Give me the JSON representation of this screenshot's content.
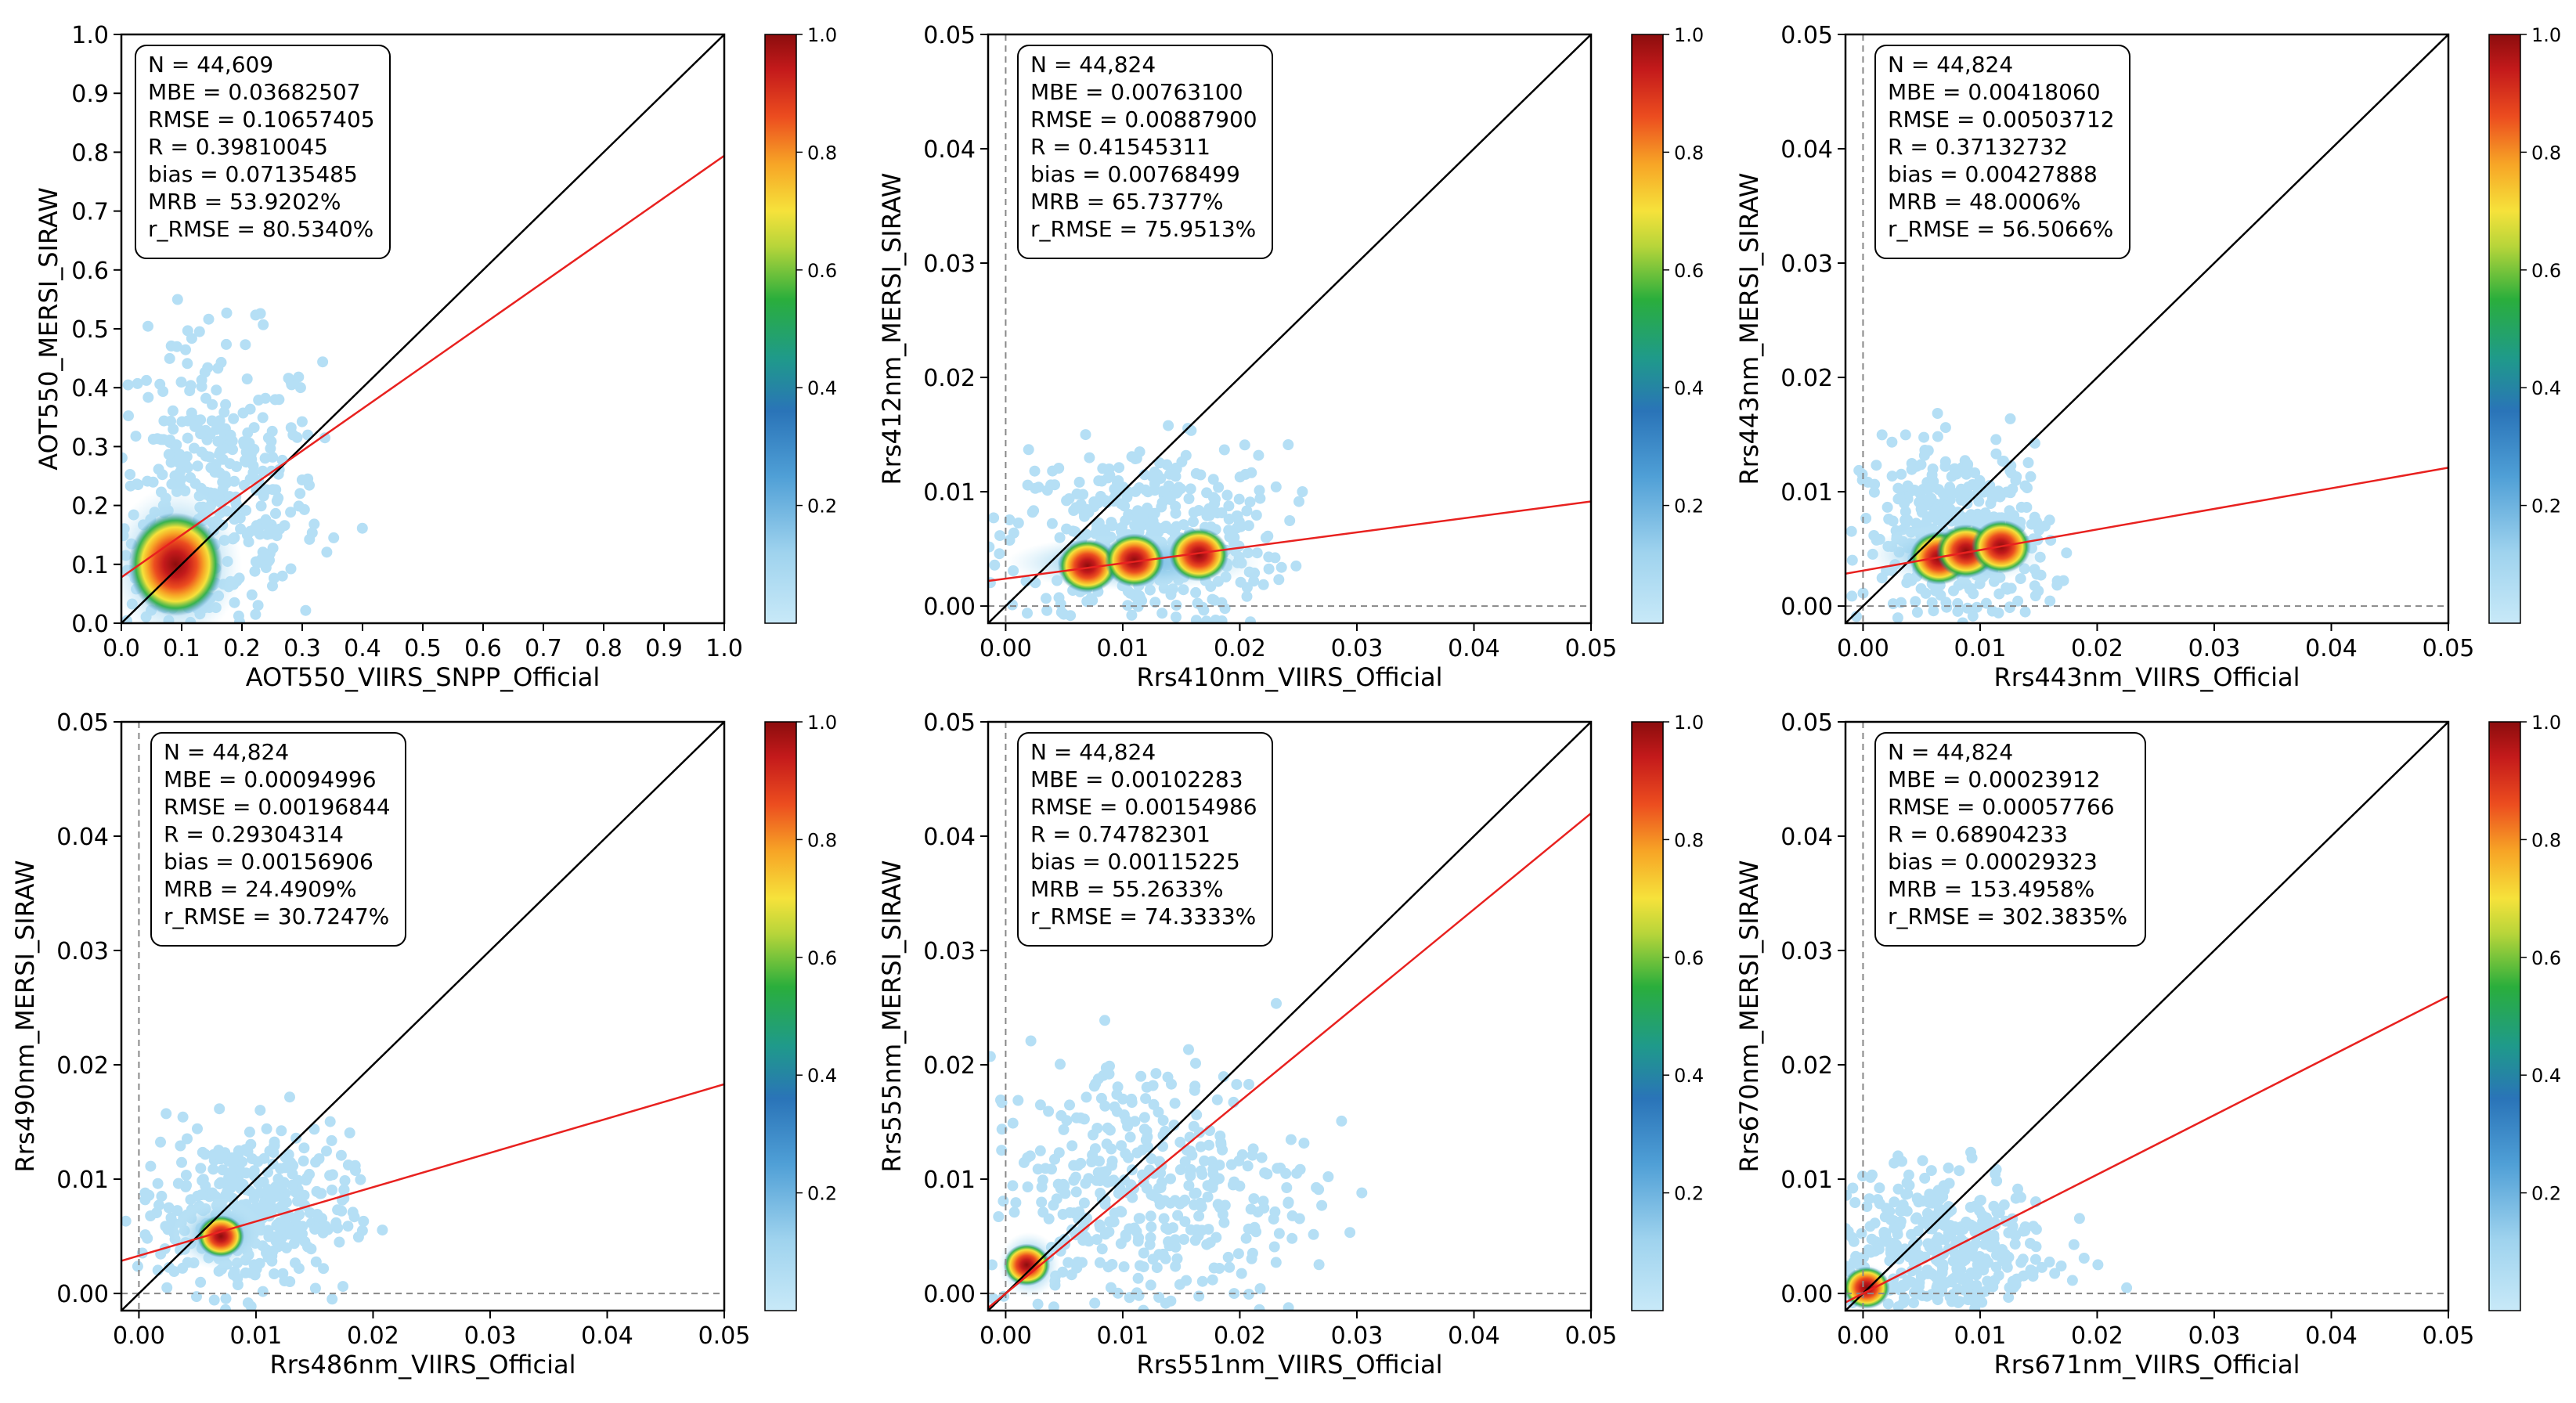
{
  "colors": {
    "identity_line": "#000000",
    "regression_line": "#e8211f",
    "zero_line": "#888888",
    "colormap": [
      "#ffffff",
      "#bfe4f6",
      "#9fd3ee",
      "#62aede",
      "#2a78c0",
      "#1f9a8a",
      "#1fae44",
      "#8ac83a",
      "#f4e23c",
      "#f7a526",
      "#ec4d1f",
      "#c41a1b",
      "#8c0d0d"
    ]
  },
  "chart_data": [
    {
      "type": "scatter",
      "xlabel": "AOT550_VIIRS_SNPP_Official",
      "ylabel": "AOT550_MERSI_SIRAW",
      "xlim": [
        0,
        1.0
      ],
      "ylim": [
        0,
        1.0
      ],
      "xticks": [
        "0.0",
        "0.1",
        "0.2",
        "0.3",
        "0.4",
        "0.5",
        "0.6",
        "0.7",
        "0.8",
        "0.9",
        "1.0"
      ],
      "yticks": [
        "0.0",
        "0.1",
        "0.2",
        "0.3",
        "0.4",
        "0.5",
        "0.6",
        "0.7",
        "0.8",
        "0.9",
        "1.0"
      ],
      "tick_values": [
        0,
        0.1,
        0.2,
        0.3,
        0.4,
        0.5,
        0.6,
        0.7,
        0.8,
        0.9,
        1.0
      ],
      "zero_lines": false,
      "regression": {
        "intercept": 0.078,
        "slope": 0.716
      },
      "core": {
        "x": 0.09,
        "y": 0.1,
        "sx": 0.05,
        "sy": 0.06,
        "rho": 0.35
      },
      "cloud": {
        "x": 0.15,
        "y": 0.2,
        "sx": 0.09,
        "sy": 0.14,
        "xmax": 0.43,
        "ymax": 0.62
      },
      "hot_spots": [
        {
          "x": 0.09,
          "y": 0.1
        }
      ],
      "stats": [
        "N = 44,609",
        "MBE = 0.03682507",
        "RMSE = 0.10657405",
        "R = 0.39810045",
        "bias = 0.07135485",
        "MRB = 53.9202%",
        "r_RMSE = 80.5340%"
      ],
      "colorbar": {
        "ticks": [
          "0.2",
          "0.4",
          "0.6",
          "0.8",
          "1.0"
        ],
        "tick_values": [
          0.2,
          0.4,
          0.6,
          0.8,
          1.0
        ]
      }
    },
    {
      "type": "scatter",
      "xlabel": "Rrs410nm_VIIRS_Official",
      "ylabel": "Rrs412nm_MERSI_SIRAW",
      "xlim": [
        -0.0015,
        0.05
      ],
      "ylim": [
        -0.0015,
        0.05
      ],
      "xticks": [
        "0.00",
        "0.01",
        "0.02",
        "0.03",
        "0.04",
        "0.05"
      ],
      "yticks": [
        "0.00",
        "0.01",
        "0.02",
        "0.03",
        "0.04",
        "0.05"
      ],
      "tick_values": [
        0,
        0.01,
        0.02,
        0.03,
        0.04,
        0.05
      ],
      "zero_lines": true,
      "regression": {
        "intercept": 0.0024,
        "slope": 0.135
      },
      "core": {
        "x": 0.011,
        "y": 0.0038,
        "sx": 0.005,
        "sy": 0.0011,
        "rho": 0.3
      },
      "cloud": {
        "x": 0.012,
        "y": 0.006,
        "sx": 0.006,
        "sy": 0.004,
        "xmax": 0.026,
        "ymax": 0.027
      },
      "hot_spots": [
        {
          "x": 0.007,
          "y": 0.0035
        },
        {
          "x": 0.011,
          "y": 0.004
        },
        {
          "x": 0.0165,
          "y": 0.0045
        }
      ],
      "stats": [
        "N = 44,824",
        "MBE = 0.00763100",
        "RMSE = 0.00887900",
        "R = 0.41545311",
        "bias = 0.00768499",
        "MRB = 65.7377%",
        "r_RMSE = 75.9513%"
      ],
      "colorbar": {
        "ticks": [
          "0.2",
          "0.4",
          "0.6",
          "0.8",
          "1.0"
        ],
        "tick_values": [
          0.2,
          0.4,
          0.6,
          0.8,
          1.0
        ]
      }
    },
    {
      "type": "scatter",
      "xlabel": "Rrs443nm_VIIRS_Official",
      "ylabel": "Rrs443nm_MERSI_SIRAW",
      "xlim": [
        -0.0015,
        0.05
      ],
      "ylim": [
        -0.0015,
        0.05
      ],
      "xticks": [
        "0.00",
        "0.01",
        "0.02",
        "0.03",
        "0.04",
        "0.05"
      ],
      "yticks": [
        "0.00",
        "0.01",
        "0.02",
        "0.03",
        "0.04",
        "0.05"
      ],
      "tick_values": [
        0,
        0.01,
        0.02,
        0.03,
        0.04,
        0.05
      ],
      "zero_lines": true,
      "regression": {
        "intercept": 0.0031,
        "slope": 0.18
      },
      "core": {
        "x": 0.008,
        "y": 0.0045,
        "sx": 0.0035,
        "sy": 0.0012,
        "rho": 0.4
      },
      "cloud": {
        "x": 0.008,
        "y": 0.006,
        "sx": 0.004,
        "sy": 0.004,
        "xmax": 0.018,
        "ymax": 0.025
      },
      "hot_spots": [
        {
          "x": 0.0065,
          "y": 0.0042
        },
        {
          "x": 0.0088,
          "y": 0.0048
        },
        {
          "x": 0.0118,
          "y": 0.0052
        }
      ],
      "stats": [
        "N = 44,824",
        "MBE = 0.00418060",
        "RMSE = 0.00503712",
        "R = 0.37132732",
        "bias = 0.00427888",
        "MRB = 48.0006%",
        "r_RMSE = 56.5066%"
      ],
      "colorbar": {
        "ticks": [
          "0.2",
          "0.4",
          "0.6",
          "0.8",
          "1.0"
        ],
        "tick_values": [
          0.2,
          0.4,
          0.6,
          0.8,
          1.0
        ]
      }
    },
    {
      "type": "scatter",
      "xlabel": "Rrs486nm_VIIRS_Official",
      "ylabel": "Rrs490nm_MERSI_SIRAW",
      "xlim": [
        -0.0015,
        0.05
      ],
      "ylim": [
        -0.0015,
        0.05
      ],
      "xticks": [
        "0.00",
        "0.01",
        "0.02",
        "0.03",
        "0.04",
        "0.05"
      ],
      "yticks": [
        "0.00",
        "0.01",
        "0.02",
        "0.03",
        "0.04",
        "0.05"
      ],
      "tick_values": [
        0,
        0.01,
        0.02,
        0.03,
        0.04,
        0.05
      ],
      "zero_lines": true,
      "regression": {
        "intercept": 0.0033,
        "slope": 0.3
      },
      "core": {
        "x": 0.0068,
        "y": 0.0052,
        "sx": 0.0018,
        "sy": 0.0014,
        "rho": 0.5
      },
      "cloud": {
        "x": 0.009,
        "y": 0.007,
        "sx": 0.0045,
        "sy": 0.0035,
        "xmax": 0.021,
        "ymax": 0.018
      },
      "hot_spots": [
        {
          "x": 0.007,
          "y": 0.005
        }
      ],
      "stats": [
        "N = 44,824",
        "MBE = 0.00094996",
        "RMSE = 0.00196844",
        "R = 0.29304314",
        "bias = 0.00156906",
        "MRB = 24.4909%",
        "r_RMSE = 30.7247%"
      ],
      "colorbar": {
        "ticks": [
          "0.2",
          "0.4",
          "0.6",
          "0.8",
          "1.0"
        ],
        "tick_values": [
          0.2,
          0.4,
          0.6,
          0.8,
          1.0
        ]
      }
    },
    {
      "type": "scatter",
      "xlabel": "Rrs551nm_VIIRS_Official",
      "ylabel": "Rrs555nm_MERSI_SIRAW",
      "xlim": [
        -0.0015,
        0.05
      ],
      "ylim": [
        -0.0015,
        0.05
      ],
      "xticks": [
        "0.00",
        "0.01",
        "0.02",
        "0.03",
        "0.04",
        "0.05"
      ],
      "yticks": [
        "0.00",
        "0.01",
        "0.02",
        "0.03",
        "0.04",
        "0.05"
      ],
      "tick_values": [
        0,
        0.01,
        0.02,
        0.03,
        0.04,
        0.05
      ],
      "zero_lines": true,
      "regression": {
        "intercept": 0.0,
        "slope": 0.84
      },
      "core": {
        "x": 0.002,
        "y": 0.0025,
        "sx": 0.0012,
        "sy": 0.0013,
        "rho": 0.6
      },
      "cloud": {
        "x": 0.012,
        "y": 0.009,
        "sx": 0.007,
        "sy": 0.006,
        "xmax": 0.031,
        "ymax": 0.027
      },
      "hot_spots": [
        {
          "x": 0.0018,
          "y": 0.0025
        }
      ],
      "stats": [
        "N = 44,824",
        "MBE = 0.00102283",
        "RMSE = 0.00154986",
        "R = 0.74782301",
        "bias = 0.00115225",
        "MRB = 55.2633%",
        "r_RMSE = 74.3333%"
      ],
      "colorbar": {
        "ticks": [
          "0.2",
          "0.4",
          "0.6",
          "0.8",
          "1.0"
        ],
        "tick_values": [
          0.2,
          0.4,
          0.6,
          0.8,
          1.0
        ]
      }
    },
    {
      "type": "scatter",
      "xlabel": "Rrs671nm_VIIRS_Official",
      "ylabel": "Rrs670nm_MERSI_SIRAW",
      "xlim": [
        -0.0015,
        0.05
      ],
      "ylim": [
        -0.0015,
        0.05
      ],
      "xticks": [
        "0.00",
        "0.01",
        "0.02",
        "0.03",
        "0.04",
        "0.05"
      ],
      "yticks": [
        "0.00",
        "0.01",
        "0.02",
        "0.03",
        "0.04",
        "0.05"
      ],
      "tick_values": [
        0,
        0.01,
        0.02,
        0.03,
        0.04,
        0.05
      ],
      "zero_lines": true,
      "regression": {
        "intercept": 0.0,
        "slope": 0.52
      },
      "core": {
        "x": 0.0003,
        "y": 0.0005,
        "sx": 0.0006,
        "sy": 0.0006,
        "rho": 0.5
      },
      "cloud": {
        "x": 0.006,
        "y": 0.004,
        "sx": 0.005,
        "sy": 0.0035,
        "xmax": 0.029,
        "ymax": 0.014
      },
      "hot_spots": [
        {
          "x": 0.0003,
          "y": 0.0005
        }
      ],
      "stats": [
        "N = 44,824",
        "MBE = 0.00023912",
        "RMSE = 0.00057766",
        "R = 0.68904233",
        "bias = 0.00029323",
        "MRB = 153.4958%",
        "r_RMSE = 302.3835%"
      ],
      "colorbar": {
        "ticks": [
          "0.2",
          "0.4",
          "0.6",
          "0.8",
          "1.0"
        ],
        "tick_values": [
          0.2,
          0.4,
          0.6,
          0.8,
          1.0
        ]
      }
    }
  ]
}
